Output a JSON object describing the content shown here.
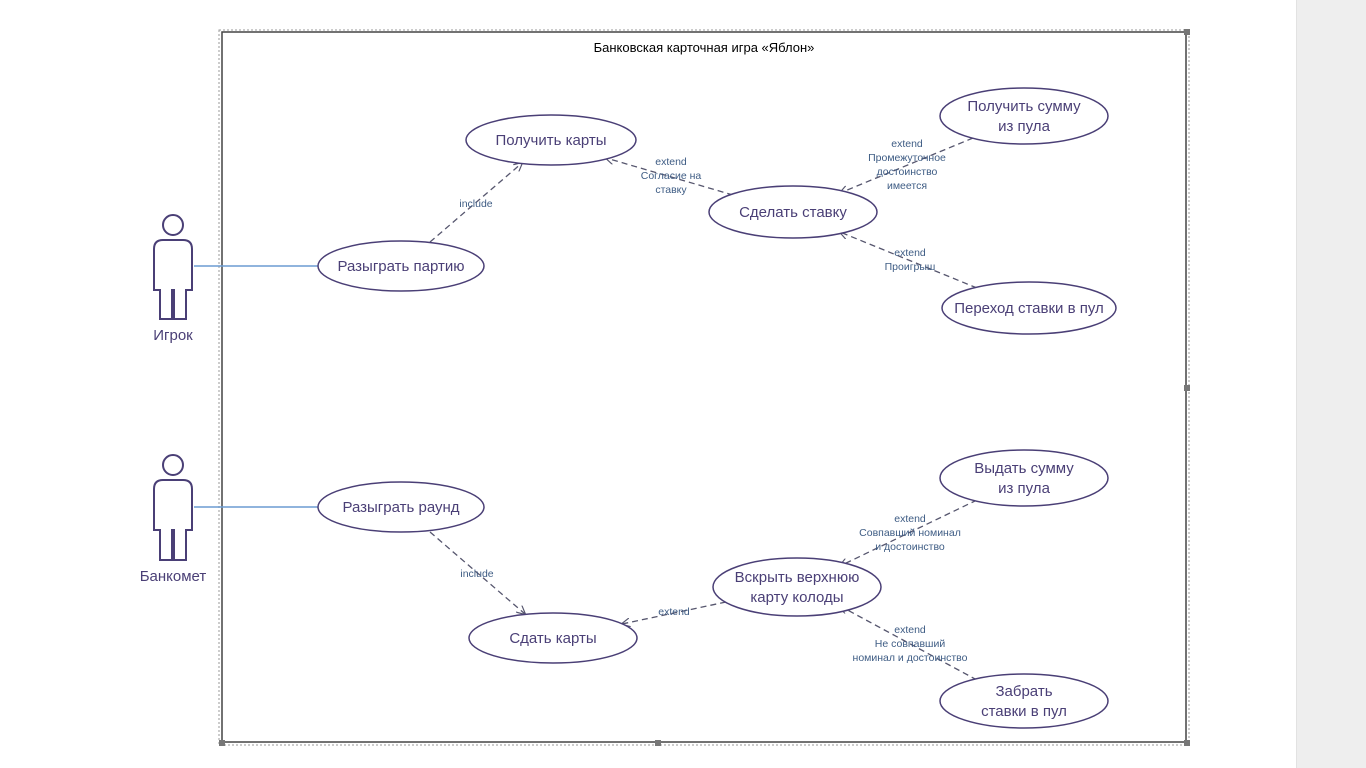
{
  "diagram": {
    "title": "Банковская карточная игра «Яблон»",
    "actors": [
      {
        "id": "player",
        "label": "Игрок"
      },
      {
        "id": "banker",
        "label": "Банкомет"
      }
    ],
    "use_cases": [
      {
        "id": "get_cards",
        "lines": [
          "Получить карты"
        ]
      },
      {
        "id": "play_game",
        "lines": [
          "Разыграть партию"
        ]
      },
      {
        "id": "make_bet",
        "lines": [
          "Сделать ставку"
        ]
      },
      {
        "id": "get_sum",
        "lines": [
          "Получить сумму",
          "из пула"
        ]
      },
      {
        "id": "bet_to_pool",
        "lines": [
          "Переход ставки в пул"
        ]
      },
      {
        "id": "play_round",
        "lines": [
          "Разыграть раунд"
        ]
      },
      {
        "id": "give_sum",
        "lines": [
          "Выдать сумму",
          "из пула"
        ]
      },
      {
        "id": "open_card",
        "lines": [
          "Вскрыть верхнюю",
          "карту колоды"
        ]
      },
      {
        "id": "deal_cards",
        "lines": [
          "Сдать карты"
        ]
      },
      {
        "id": "take_bets",
        "lines": [
          "Забрать",
          "ставки в пул"
        ]
      }
    ],
    "relations": [
      {
        "id": "rel-include-1",
        "type": "include",
        "lines": [
          "include"
        ]
      },
      {
        "id": "rel-extend-agree",
        "type": "extend",
        "lines": [
          "extend",
          "Согласие на",
          "ставку"
        ]
      },
      {
        "id": "rel-extend-dignity",
        "type": "extend",
        "lines": [
          "extend",
          "Промежуточное",
          "достоинство",
          "имеется"
        ]
      },
      {
        "id": "rel-extend-loss",
        "type": "extend",
        "lines": [
          "extend",
          "Проигрыш"
        ]
      },
      {
        "id": "rel-include-2",
        "type": "include",
        "lines": [
          "include"
        ]
      },
      {
        "id": "rel-extend-deal",
        "type": "extend",
        "lines": [
          "extend"
        ]
      },
      {
        "id": "rel-extend-match",
        "type": "extend",
        "lines": [
          "extend",
          "Совпавший номинал",
          "и достоинство"
        ]
      },
      {
        "id": "rel-extend-nomatch",
        "type": "extend",
        "lines": [
          "extend",
          "Не совпавший",
          "номинал и достоинство"
        ]
      }
    ],
    "colors": {
      "ellipse_stroke": "#4a3f76",
      "actor_stroke": "#4a3f76",
      "association": "#6b9bd2",
      "dependency": "#56566e",
      "relation_label": "#3e5c84",
      "frame": "#333333",
      "side_panel": "#eeeeee"
    }
  }
}
